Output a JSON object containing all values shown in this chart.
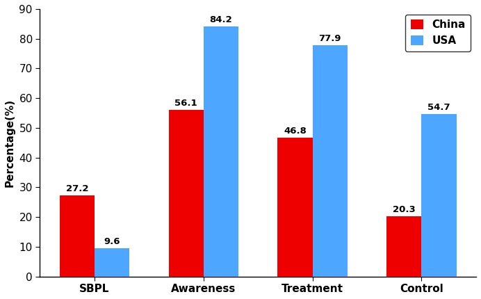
{
  "categories": [
    "SBPL",
    "Awareness",
    "Treatment",
    "Control"
  ],
  "china_values": [
    27.2,
    56.1,
    46.8,
    20.3
  ],
  "usa_values": [
    9.6,
    84.2,
    77.9,
    54.7
  ],
  "china_color": "#EE0000",
  "usa_color": "#4DA6FF",
  "ylabel": "Percentage(%)",
  "ylim": [
    0,
    90
  ],
  "yticks": [
    0,
    10,
    20,
    30,
    40,
    50,
    60,
    70,
    80,
    90
  ],
  "legend_labels": [
    "China",
    "USA"
  ],
  "bar_width": 0.32,
  "label_fontsize": 11,
  "tick_fontsize": 11,
  "value_fontsize": 9.5,
  "background_color": "#ffffff"
}
